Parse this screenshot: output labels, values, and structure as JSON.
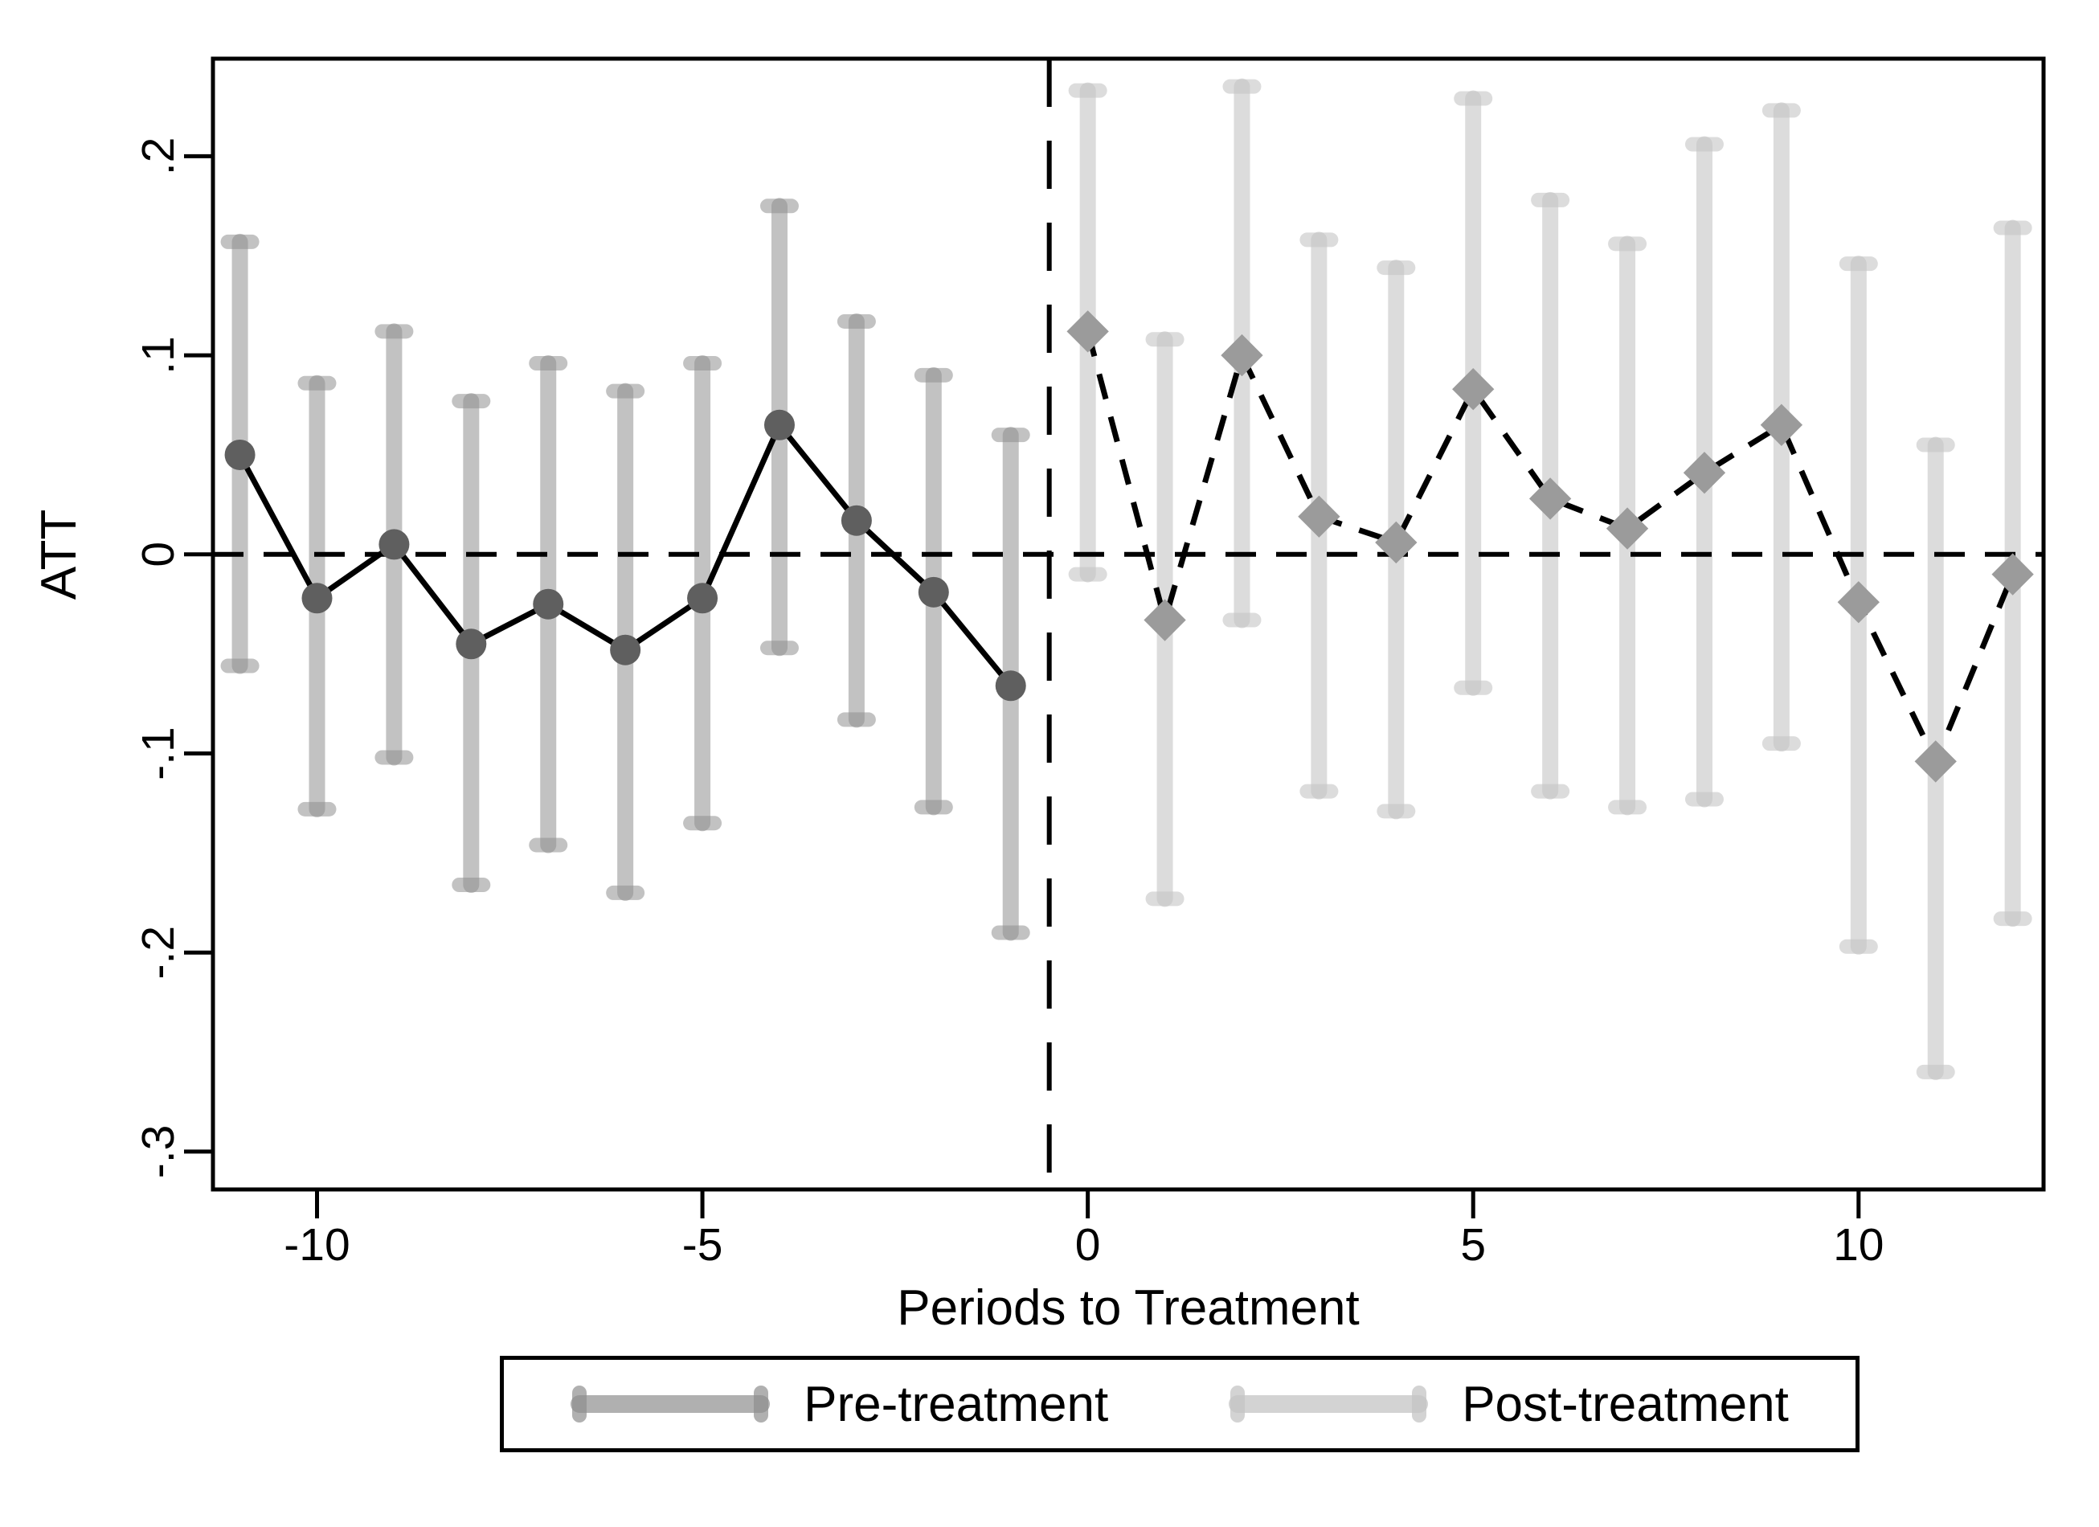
{
  "figure": {
    "background": "#ffffff",
    "axis_color": "#000000",
    "text_color": "#000000"
  },
  "chart_data": {
    "type": "line",
    "title": "",
    "xlabel": "Periods to Treatment",
    "ylabel": "ATT",
    "grid": false,
    "legend_position": "bottom",
    "xlim": [
      -11.35,
      12.4
    ],
    "ylim": [
      -0.319,
      0.249
    ],
    "x_ticks": {
      "values": [
        -10,
        -5,
        0,
        5,
        10
      ],
      "labels": [
        "-10",
        "-5",
        "0",
        "5",
        "10"
      ]
    },
    "y_ticks": {
      "values": [
        0.2,
        0.1,
        0,
        -0.1,
        -0.2,
        -0.3
      ],
      "labels": [
        ".2",
        ".1",
        "0",
        "-.1",
        "-.2",
        "-.3"
      ]
    },
    "reference_lines": {
      "horizontal_y": 0,
      "vertical_x": -0.5,
      "style": "dashed",
      "color": "#000000"
    },
    "series": [
      {
        "name": "Pre-treatment",
        "marker": "circle",
        "line_style": "solid",
        "line_color": "#000000",
        "marker_color": "#5f5f5f",
        "ci_color": "#8f8f8f",
        "ci_opacity": 0.55,
        "x": [
          -11,
          -10,
          -9,
          -8,
          -7,
          -6,
          -5,
          -4,
          -3,
          -2,
          -1
        ],
        "y": [
          0.05,
          -0.022,
          0.005,
          -0.045,
          -0.025,
          -0.048,
          -0.022,
          0.065,
          0.017,
          -0.019,
          -0.066
        ],
        "ci_low": [
          -0.056,
          -0.128,
          -0.102,
          -0.166,
          -0.146,
          -0.17,
          -0.135,
          -0.047,
          -0.083,
          -0.127,
          -0.19
        ],
        "ci_high": [
          0.157,
          0.086,
          0.112,
          0.077,
          0.096,
          0.082,
          0.096,
          0.175,
          0.117,
          0.09,
          0.06
        ]
      },
      {
        "name": "Post-treatment",
        "marker": "diamond",
        "line_style": "dashed",
        "line_color": "#000000",
        "marker_color": "#9b9b9b",
        "ci_color": "#c4c4c4",
        "ci_opacity": 0.6,
        "x": [
          0,
          1,
          2,
          3,
          4,
          5,
          6,
          7,
          8,
          9,
          10,
          11,
          12
        ],
        "y": [
          0.112,
          -0.033,
          0.1,
          0.019,
          0.006,
          0.083,
          0.028,
          0.013,
          0.041,
          0.065,
          -0.024,
          -0.104,
          -0.01
        ],
        "ci_low": [
          -0.01,
          -0.173,
          -0.033,
          -0.119,
          -0.129,
          -0.067,
          -0.119,
          -0.127,
          -0.123,
          -0.095,
          -0.197,
          -0.26,
          -0.183
        ],
        "ci_high": [
          0.233,
          0.108,
          0.235,
          0.158,
          0.144,
          0.229,
          0.178,
          0.156,
          0.206,
          0.223,
          0.146,
          0.055,
          0.164
        ]
      }
    ]
  }
}
